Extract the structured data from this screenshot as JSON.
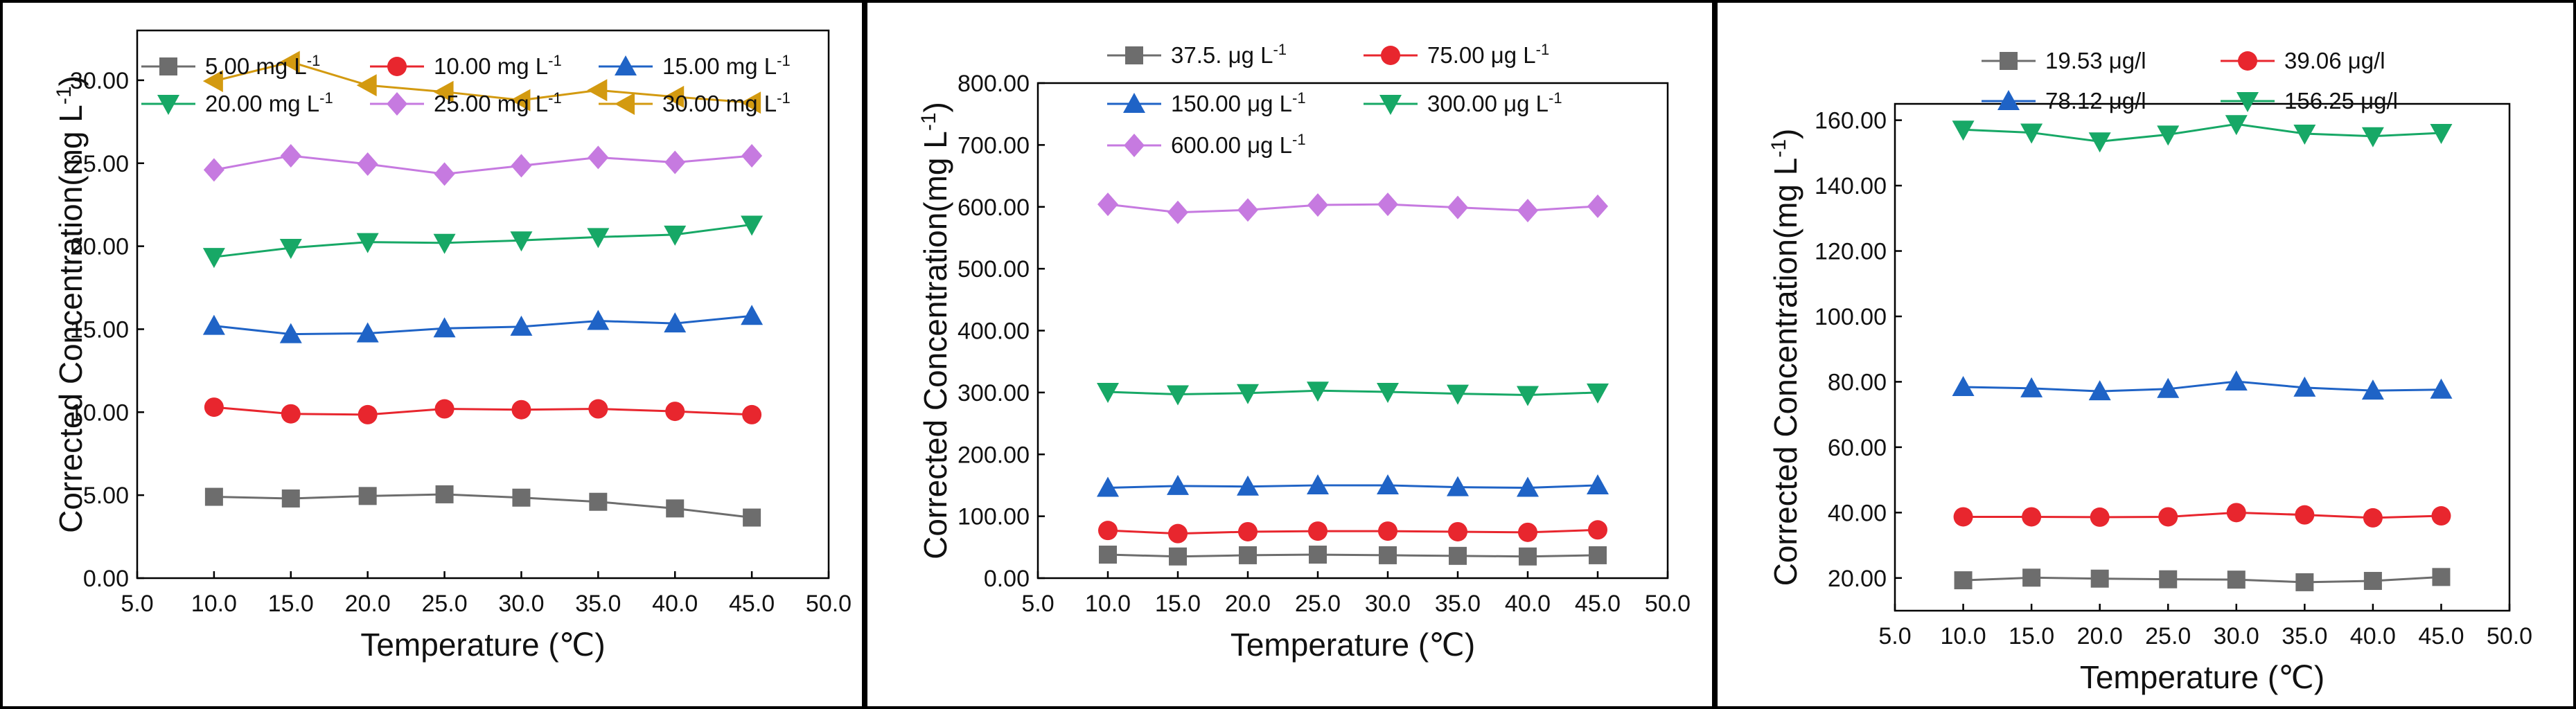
{
  "chart_data": [
    {
      "type": "line",
      "panel": "left",
      "title": "",
      "xlabel": "Temperature (℃)",
      "ylabel": "Corrected Concentration(mg L",
      "ylabel_sup": "-1",
      "ylabel_close": ")",
      "xlim": [
        5,
        50
      ],
      "ylim": [
        0,
        33
      ],
      "x_ticks": [
        5,
        10,
        15,
        20,
        25,
        30,
        35,
        40,
        45,
        50
      ],
      "x_tick_labels": [
        "5.0",
        "10.0",
        "15.0",
        "20.0",
        "25.0",
        "30.0",
        "35.0",
        "40.0",
        "45.0",
        "50.0"
      ],
      "y_ticks": [
        0,
        5,
        10,
        15,
        20,
        25,
        30
      ],
      "y_tick_labels": [
        "0.00",
        "5.00",
        "10.00",
        "15.00",
        "20.00",
        "25.00",
        "30.00"
      ],
      "x": [
        10,
        15,
        20,
        25,
        30,
        35,
        40,
        45
      ],
      "series": [
        {
          "name": "5.00 mg L",
          "sup": "-1",
          "color": "#6d6d6d",
          "marker": "square",
          "values": [
            4.9,
            4.8,
            4.95,
            5.05,
            4.85,
            4.6,
            4.2,
            3.65
          ]
        },
        {
          "name": "10.00 mg L",
          "sup": "-1",
          "color": "#e8262e",
          "marker": "circle",
          "values": [
            10.3,
            9.9,
            9.85,
            10.2,
            10.15,
            10.2,
            10.05,
            9.85
          ]
        },
        {
          "name": "15.00 mg L",
          "sup": "-1",
          "color": "#1f63c6",
          "marker": "triangle-up",
          "values": [
            15.2,
            14.7,
            14.75,
            15.05,
            15.15,
            15.5,
            15.35,
            15.8
          ]
        },
        {
          "name": "20.00 mg L",
          "sup": "-1",
          "color": "#17a866",
          "marker": "triangle-down",
          "values": [
            19.35,
            19.9,
            20.25,
            20.2,
            20.35,
            20.55,
            20.7,
            21.3
          ]
        },
        {
          "name": "25.00 mg L",
          "sup": "-1",
          "color": "#c67ae0",
          "marker": "diamond",
          "values": [
            24.6,
            25.45,
            24.95,
            24.35,
            24.85,
            25.35,
            25.05,
            25.45
          ]
        },
        {
          "name": "30.00 mg L",
          "sup": "-1",
          "color": "#d39a10",
          "marker": "triangle-left",
          "values": [
            29.95,
            31.1,
            29.7,
            29.3,
            28.8,
            29.4,
            29.0,
            28.65
          ]
        }
      ]
    },
    {
      "type": "line",
      "panel": "middle",
      "title": "",
      "xlabel": "Temperature (℃)",
      "ylabel": "Corrected Concentration(mg L",
      "ylabel_sup": "-1",
      "ylabel_close": ")",
      "xlim": [
        5,
        50
      ],
      "ylim": [
        0,
        800
      ],
      "x_ticks": [
        5,
        10,
        15,
        20,
        25,
        30,
        35,
        40,
        45,
        50
      ],
      "x_tick_labels": [
        "5.0",
        "10.0",
        "15.0",
        "20.0",
        "25.0",
        "30.0",
        "35.0",
        "40.0",
        "45.0",
        "50.0"
      ],
      "y_ticks": [
        0,
        100,
        200,
        300,
        400,
        500,
        600,
        700,
        800
      ],
      "y_tick_labels": [
        "0.00",
        "100.00",
        "200.00",
        "300.00",
        "400.00",
        "500.00",
        "600.00",
        "700.00",
        "800.00"
      ],
      "x": [
        10,
        15,
        20,
        25,
        30,
        35,
        40,
        45
      ],
      "series": [
        {
          "name": "37.5. μg L",
          "sup": "-1",
          "color": "#6d6d6d",
          "marker": "square",
          "values": [
            38,
            35,
            37,
            38,
            37,
            36,
            35,
            37
          ]
        },
        {
          "name": "75.00 μg L",
          "sup": "-1",
          "color": "#e8262e",
          "marker": "circle",
          "values": [
            77,
            72,
            75,
            76,
            76,
            75,
            74,
            78
          ]
        },
        {
          "name": "150.00 μg L",
          "sup": "-1",
          "color": "#1f63c6",
          "marker": "triangle-up",
          "values": [
            146,
            149,
            148,
            150,
            150,
            147,
            146,
            150
          ]
        },
        {
          "name": "300.00 μg L",
          "sup": "-1",
          "color": "#17a866",
          "marker": "triangle-down",
          "values": [
            301,
            297,
            299,
            303,
            301,
            298,
            296,
            300
          ]
        },
        {
          "name": "600.00 μg L",
          "sup": "-1",
          "color": "#c67ae0",
          "marker": "diamond",
          "values": [
            604,
            591,
            595,
            603,
            604,
            599,
            594,
            601
          ]
        }
      ]
    },
    {
      "type": "line",
      "panel": "right",
      "title": "",
      "xlabel": "Temperature (℃)",
      "ylabel": "Corrected Concentration(mg L",
      "ylabel_sup": "-1",
      "ylabel_close": ")",
      "xlim": [
        5,
        50
      ],
      "ylim": [
        10,
        165
      ],
      "x_ticks": [
        5,
        10,
        15,
        20,
        25,
        30,
        35,
        40,
        45,
        50
      ],
      "x_tick_labels": [
        "5.0",
        "10.0",
        "15.0",
        "20.0",
        "25.0",
        "30.0",
        "35.0",
        "40.0",
        "45.0",
        "50.0"
      ],
      "y_ticks": [
        20,
        40,
        60,
        80,
        100,
        120,
        140,
        160
      ],
      "y_tick_labels": [
        "20.00",
        "40.00",
        "60.00",
        "80.00",
        "100.00",
        "120.00",
        "140.00",
        "160.00"
      ],
      "x": [
        10,
        15,
        20,
        25,
        30,
        35,
        40,
        45
      ],
      "series": [
        {
          "name": "19.53 μg/l",
          "sup": "",
          "color": "#6d6d6d",
          "marker": "square",
          "values": [
            19.3,
            20.1,
            19.8,
            19.6,
            19.5,
            18.7,
            19.1,
            20.3
          ]
        },
        {
          "name": "39.06 μg/l",
          "sup": "",
          "color": "#e8262e",
          "marker": "circle",
          "values": [
            38.7,
            38.7,
            38.6,
            38.7,
            40.0,
            39.3,
            38.4,
            39.0
          ]
        },
        {
          "name": "78.12 μg/l",
          "sup": "",
          "color": "#1f63c6",
          "marker": "triangle-up",
          "values": [
            78.4,
            78.0,
            77.1,
            77.8,
            80.1,
            78.2,
            77.3,
            77.6
          ]
        },
        {
          "name": "156.25 μg/l",
          "sup": "",
          "color": "#17a866",
          "marker": "triangle-down",
          "values": [
            157.1,
            156.2,
            153.5,
            155.6,
            158.8,
            155.9,
            155.1,
            156.1
          ]
        }
      ]
    }
  ]
}
